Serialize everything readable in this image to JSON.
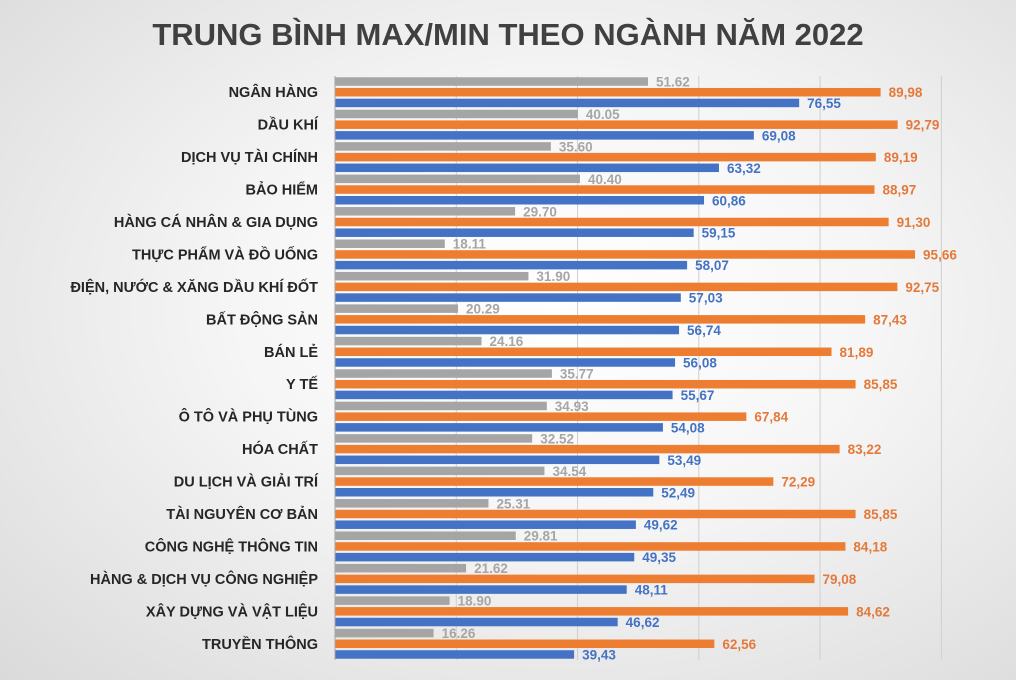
{
  "chart_data": {
    "type": "bar",
    "orientation": "horizontal",
    "title": "TRUNG BÌNH MAX/MIN THEO NGÀNH NĂM 2022",
    "xlabel": "",
    "ylabel": "",
    "xlim": [
      0,
      110
    ],
    "grid": true,
    "legend": "none",
    "categories": [
      "NGÂN HÀNG",
      "DẦU KHÍ",
      "DỊCH VỤ TÀI CHÍNH",
      "BẢO HIỂM",
      "HÀNG CÁ NHÂN & GIA DỤNG",
      "THỰC PHẨM VÀ ĐỒ UỐNG",
      "ĐIỆN, NƯỚC & XĂNG DẦU KHÍ ĐỐT",
      "BẤT ĐỘNG SẢN",
      "BÁN LẺ",
      "Y TẾ",
      "Ô TÔ VÀ PHỤ TÙNG",
      "HÓA CHẤT",
      "DU LỊCH VÀ GIẢI TRÍ",
      "TÀI NGUYÊN CƠ BẢN",
      "CÔNG NGHỆ THÔNG TIN",
      "HÀNG & DỊCH VỤ CÔNG NGHIỆP",
      "XÂY DỰNG VÀ VẬT LIỆU",
      "TRUYỀN THÔNG"
    ],
    "series": [
      {
        "name": "gray",
        "color": "#a5a5a5",
        "values": [
          51.62,
          40.05,
          35.6,
          40.4,
          29.7,
          18.11,
          31.9,
          20.29,
          24.16,
          35.77,
          34.93,
          32.52,
          34.54,
          25.31,
          29.81,
          21.62,
          18.9,
          16.26
        ],
        "labels": [
          "51.62",
          "40.05",
          "35.60",
          "40.40",
          "29.70",
          "18.11",
          "31.90",
          "20.29",
          "24.16",
          "35.77",
          "34.93",
          "32.52",
          "34.54",
          "25.31",
          "29.81",
          "21.62",
          "18.90",
          "16.26"
        ]
      },
      {
        "name": "orange",
        "color": "#ed7d31",
        "values": [
          89.98,
          92.79,
          89.19,
          88.97,
          91.3,
          95.66,
          92.75,
          87.43,
          81.89,
          85.85,
          67.84,
          83.22,
          72.29,
          85.85,
          84.18,
          79.08,
          84.62,
          62.56
        ],
        "labels": [
          "89,98",
          "92,79",
          "89,19",
          "88,97",
          "91,30",
          "95,66",
          "92,75",
          "87,43",
          "81,89",
          "85,85",
          "67,84",
          "83,22",
          "72,29",
          "85,85",
          "84,18",
          "79,08",
          "84,62",
          "62,56"
        ]
      },
      {
        "name": "blue",
        "color": "#4472c4",
        "values": [
          76.55,
          69.08,
          63.32,
          60.86,
          59.15,
          58.07,
          57.03,
          56.74,
          56.08,
          55.67,
          54.08,
          53.49,
          52.49,
          49.62,
          49.35,
          48.11,
          46.62,
          39.43
        ],
        "labels": [
          "76,55",
          "69,08",
          "63,32",
          "60,86",
          "59,15",
          "58,07",
          "57,03",
          "56,74",
          "56,08",
          "55,67",
          "54,08",
          "53,49",
          "52,49",
          "49,62",
          "49,35",
          "48,11",
          "46,62",
          "39,43"
        ]
      }
    ]
  }
}
